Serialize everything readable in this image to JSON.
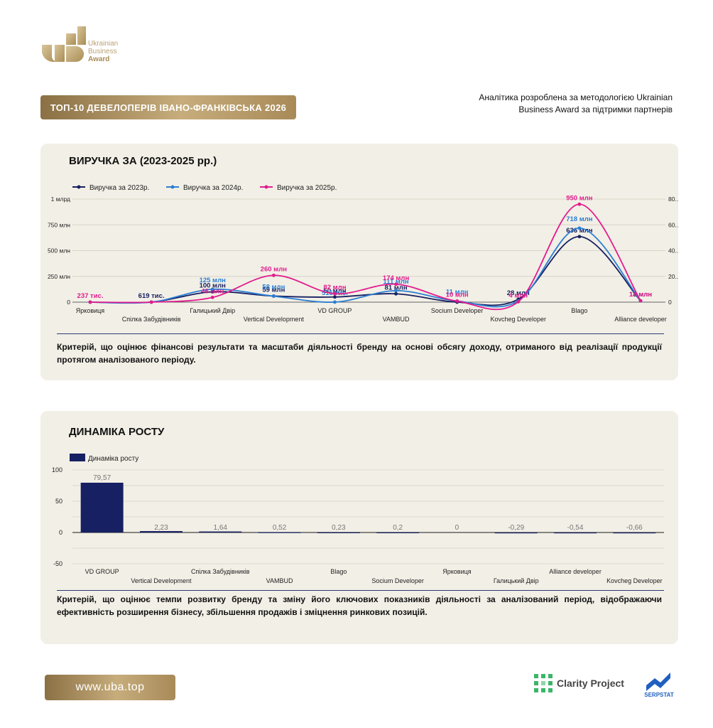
{
  "brand": {
    "logo_line1": "Ukrainian",
    "logo_line2": "Business",
    "logo_line3": "Award"
  },
  "header": {
    "title": "ТОП-10 ДЕВЕЛОПЕРІВ ІВАНО-ФРАНКІВСЬКА 2026",
    "note_line1": "Аналітика розроблена за методологією Ukrainian",
    "note_line2": "Business Award за підтримки партнерів"
  },
  "footer": {
    "site": "www.uba.top",
    "partner1": "Clarity Project",
    "partner2": "SERPSTAT"
  },
  "colors": {
    "series2023": "#172062",
    "series2024": "#2b7fd4",
    "series2025": "#e21b8e",
    "bars": "#172062",
    "gold": "#b9a274"
  },
  "chart_data": [
    {
      "type": "line",
      "title": "ВИРУЧКА ЗА (2023-2025 рр.)",
      "description": "Критерій, що оцінює фінансові результати та масштаби діяльності бренду на основі обсягу доходу, отриманого від реалізації продукції протягом аналізованого періоду.",
      "categories": [
        "Ярковиця",
        "Спілка Забудівників",
        "Галицький Двір",
        "Vertical Development",
        "VD GROUP",
        "VAMBUD",
        "Socium Developer",
        "Kovcheg Developer",
        "Blago",
        "Alliance developer"
      ],
      "y_ticks": [
        "0",
        "250 млн",
        "500 млн",
        "750 млн",
        "1 млрд"
      ],
      "y_right_ticks": [
        "0",
        "20...",
        "40...",
        "60...",
        "80..."
      ],
      "ylim": [
        0,
        1000
      ],
      "unit": "млн",
      "series": [
        {
          "name": "Виручка за 2023р.",
          "values": [
            0,
            0.6,
            100,
            59,
            50,
            81,
            0,
            28,
            636,
            13
          ],
          "labels": [
            "",
            "619 тис.",
            "100 млн",
            "59 млн",
            "50 млн",
            "81 млн",
            "",
            "28 млн",
            "636 млн",
            "13 млн"
          ]
        },
        {
          "name": "Виручка за 2024р.",
          "values": [
            0,
            0,
            125,
            58,
            0.5,
            111,
            11,
            11,
            718,
            12
          ],
          "labels": [
            "",
            "",
            "125 млн",
            "58 млн",
            "515 тис.",
            "111 млн",
            "11 млн",
            "",
            "718 млн",
            ""
          ]
        },
        {
          "name": "Виручка за 2025р.",
          "values": [
            0.2,
            0,
            46,
            260,
            82,
            174,
            10,
            4,
            950,
            14
          ],
          "labels": [
            "237 тис.",
            "",
            "46 млн",
            "260 млн",
            "82 млн",
            "174 млн",
            "10 млн",
            "4 млн",
            "950 млн",
            "14 млн"
          ]
        }
      ],
      "legend": "top-left",
      "grid": true
    },
    {
      "type": "bar",
      "title": "ДИНАМІКА РОСТУ",
      "description": "Критерій, що оцінює темпи розвитку бренду та зміну його ключових показників діяльності за аналізований період, відображаючи ефективність розширення бізнесу, збільшення продажів і зміцнення ринкових позицій.",
      "series_name": "Динаміка росту",
      "categories": [
        "VD GROUP",
        "Vertical Development",
        "Спілка Забудівників",
        "VAMBUD",
        "Blago",
        "Socium Developer",
        "Ярковиця",
        "Галицький Двір",
        "Alliance developer",
        "Kovcheg Developer"
      ],
      "values": [
        79.57,
        2.23,
        1.64,
        0.52,
        0.23,
        0.2,
        0,
        -0.29,
        -0.54,
        -0.66
      ],
      "value_labels": [
        "79,57",
        "2,23",
        "1,64",
        "0,52",
        "0,23",
        "0,2",
        "0",
        "-0,29",
        "-0,54",
        "-0,66"
      ],
      "y_ticks": [
        "-50",
        "0",
        "50",
        "100"
      ],
      "ylim": [
        -50,
        100
      ],
      "legend": "top-left",
      "grid": true
    }
  ]
}
